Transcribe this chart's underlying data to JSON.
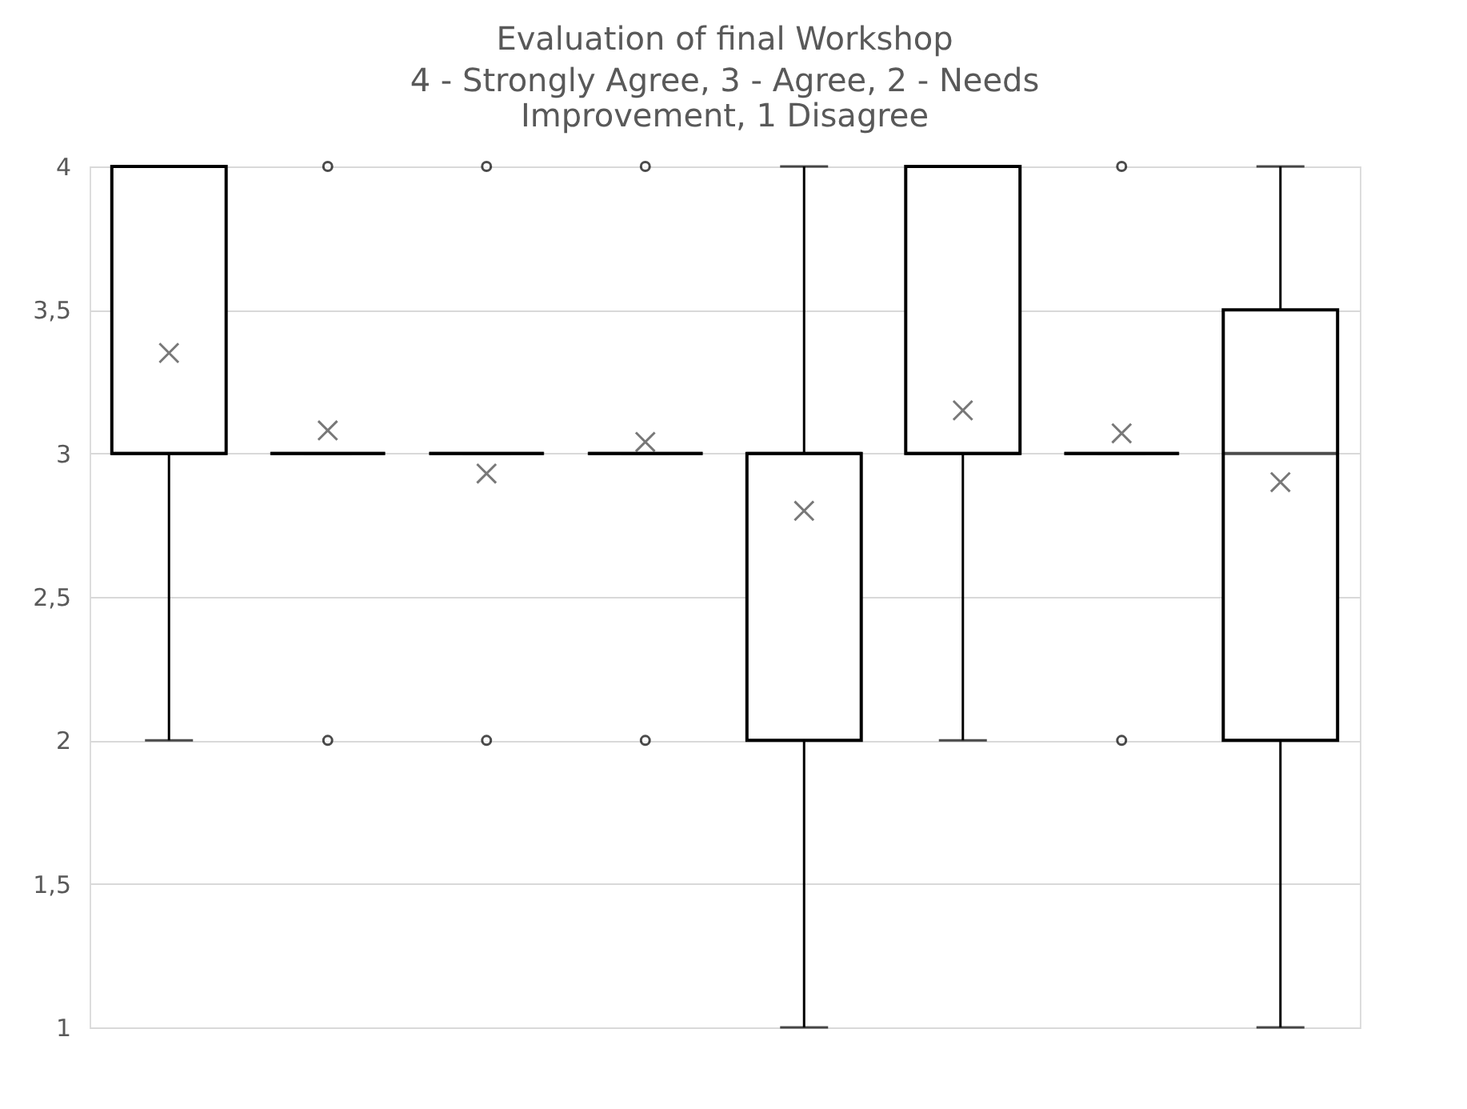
{
  "chart_data": {
    "type": "box",
    "title": "Evaluation of final Workshop",
    "subtitle": "4 - Strongly Agree, 3 - Agree, 2 - Needs Improvement,  1 Disagree",
    "categories": [
      null,
      null,
      null,
      null,
      null,
      null,
      null,
      null
    ],
    "boxes": [
      {
        "low": 2,
        "q1": 3,
        "median": 3,
        "q3": 4,
        "high": 4,
        "mean": 3.35
      },
      {
        "low": 3,
        "q1": 3,
        "median": 3,
        "q3": 3,
        "high": 3,
        "mean": 3.08,
        "outliers": [
          2,
          4
        ]
      },
      {
        "low": 3,
        "q1": 3,
        "median": 3,
        "q3": 3,
        "high": 3,
        "mean": 2.93,
        "outliers": [
          2,
          4
        ]
      },
      {
        "low": 3,
        "q1": 3,
        "median": 3,
        "q3": 3,
        "high": 3,
        "mean": 3.04,
        "outliers": [
          2,
          4
        ]
      },
      {
        "low": 1,
        "q1": 2,
        "median": 3,
        "q3": 3,
        "high": 4,
        "mean": 2.8
      },
      {
        "low": 2,
        "q1": 3,
        "median": 3,
        "q3": 4,
        "high": 4,
        "mean": 3.15
      },
      {
        "low": 3,
        "q1": 3,
        "median": 3,
        "q3": 3,
        "high": 3,
        "mean": 3.07,
        "outliers": [
          2,
          4
        ]
      },
      {
        "low": 1,
        "q1": 2,
        "median": 3,
        "q3": 3.5,
        "high": 4,
        "mean": 2.9
      }
    ],
    "ylim": [
      1,
      4
    ],
    "yticks": [
      1,
      {
        "value": 1.5,
        "label": "1,5"
      },
      2,
      {
        "value": 2.5,
        "label": "2,5"
      },
      3,
      {
        "value": 3.5,
        "label": "3,5"
      },
      4
    ],
    "grid": "y",
    "tick_labels": "y",
    "marker": "cross"
  }
}
